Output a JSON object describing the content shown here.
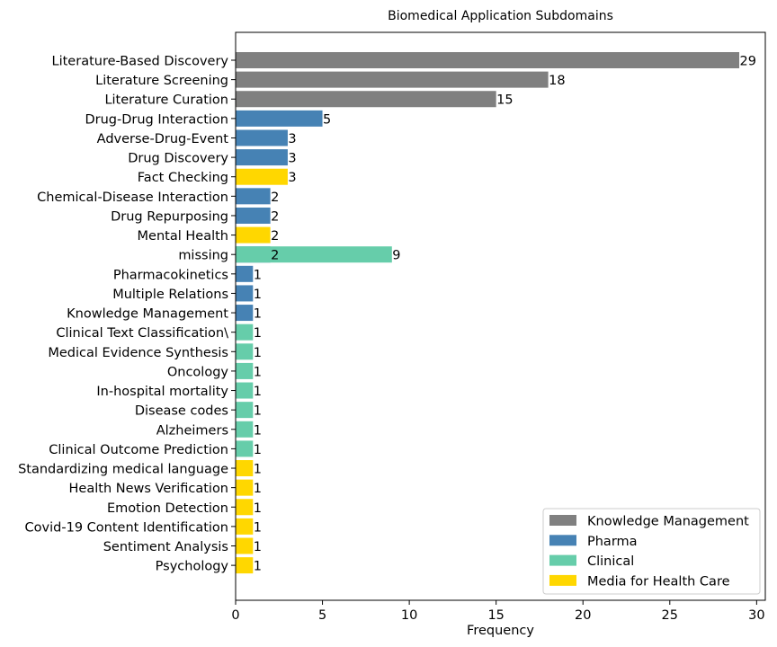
{
  "chart_data": {
    "type": "bar",
    "orientation": "horizontal",
    "title": "Biomedical Application Subdomains",
    "xlabel": "Frequency",
    "ylabel": "",
    "xlim": [
      0,
      30.5
    ],
    "xticks": [
      "0",
      "5",
      "10",
      "15",
      "20",
      "25",
      "30"
    ],
    "grid": false,
    "legend_position": "bottom-right",
    "legend": [
      {
        "name": "Knowledge Management",
        "color": "#808080"
      },
      {
        "name": "Pharma",
        "color": "#4682b4"
      },
      {
        "name": "Clinical",
        "color": "#66cdaa"
      },
      {
        "name": "Media for Health Care",
        "color": "#ffd700"
      }
    ],
    "categories": [
      "Literature-Based Discovery",
      "Literature Screening",
      "Literature Curation",
      "Drug-Drug Interaction",
      "Adverse-Drug-Event",
      "Drug Discovery",
      "Fact Checking",
      "Chemical-Disease Interaction",
      "Drug Repurposing",
      "Mental Health",
      "missing",
      "Pharmacokinetics",
      "Multiple Relations",
      "Knowledge Management",
      "Clinical Text Classification\\",
      "Medical Evidence Synthesis",
      "Oncology",
      "In-hospital mortality",
      "Disease codes",
      "Alzheimers",
      "Clinical Outcome Prediction",
      "Standardizing medical language",
      "Health News Verification",
      "Emotion Detection",
      "Covid-19 Content Identification",
      "Sentiment Analysis",
      "Psychology"
    ],
    "series": [
      {
        "name": "Knowledge Management",
        "color": "#808080",
        "values": [
          29,
          18,
          15,
          null,
          null,
          null,
          null,
          null,
          null,
          null,
          null,
          null,
          null,
          null,
          null,
          null,
          null,
          null,
          null,
          null,
          null,
          null,
          null,
          null,
          null,
          null,
          null
        ]
      },
      {
        "name": "Pharma",
        "color": "#4682b4",
        "values": [
          null,
          null,
          null,
          5,
          3,
          3,
          null,
          2,
          2,
          null,
          2,
          1,
          1,
          1,
          null,
          null,
          null,
          null,
          null,
          null,
          null,
          null,
          null,
          null,
          null,
          null,
          null
        ]
      },
      {
        "name": "Clinical",
        "color": "#66cdaa",
        "values": [
          null,
          null,
          null,
          null,
          null,
          null,
          null,
          null,
          null,
          null,
          9,
          null,
          null,
          null,
          1,
          1,
          1,
          1,
          1,
          1,
          1,
          null,
          null,
          null,
          null,
          null,
          null
        ]
      },
      {
        "name": "Media for Health Care",
        "color": "#ffd700",
        "values": [
          null,
          null,
          null,
          null,
          null,
          null,
          3,
          null,
          null,
          2,
          null,
          null,
          null,
          null,
          null,
          null,
          null,
          null,
          null,
          null,
          null,
          1,
          1,
          1,
          1,
          1,
          1
        ]
      }
    ]
  }
}
